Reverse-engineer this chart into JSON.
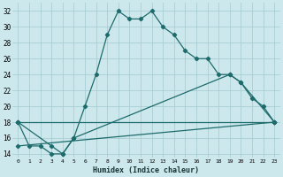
{
  "xlabel": "Humidex (Indice chaleur)",
  "bg_color": "#cce8ed",
  "grid_color": "#aacdd4",
  "line_color": "#1e6b6b",
  "xlim": [
    -0.5,
    23.5
  ],
  "ylim": [
    13.5,
    33
  ],
  "xticks": [
    0,
    1,
    2,
    3,
    4,
    5,
    6,
    7,
    8,
    9,
    10,
    11,
    12,
    13,
    14,
    15,
    16,
    17,
    18,
    19,
    20,
    21,
    22,
    23
  ],
  "yticks": [
    14,
    16,
    18,
    20,
    22,
    24,
    26,
    28,
    30,
    32
  ],
  "series1_x": [
    0,
    1,
    2,
    3,
    4,
    5,
    6,
    7,
    8,
    9,
    10,
    11,
    12,
    13,
    14,
    15,
    16,
    17,
    18,
    19,
    20,
    21,
    22,
    23
  ],
  "series1_y": [
    18,
    15,
    15,
    14,
    14,
    16,
    20,
    24,
    29,
    32,
    31,
    31,
    32,
    30,
    29,
    27,
    26,
    26,
    24,
    24,
    23,
    21,
    20,
    18
  ],
  "series2_x": [
    0,
    3,
    4,
    5,
    19,
    20,
    23
  ],
  "series2_y": [
    18,
    15,
    14,
    16,
    24,
    23,
    18
  ],
  "series3_x": [
    0,
    23
  ],
  "series3_y": [
    18,
    18
  ],
  "series4_x": [
    0,
    23
  ],
  "series4_y": [
    15,
    18
  ]
}
